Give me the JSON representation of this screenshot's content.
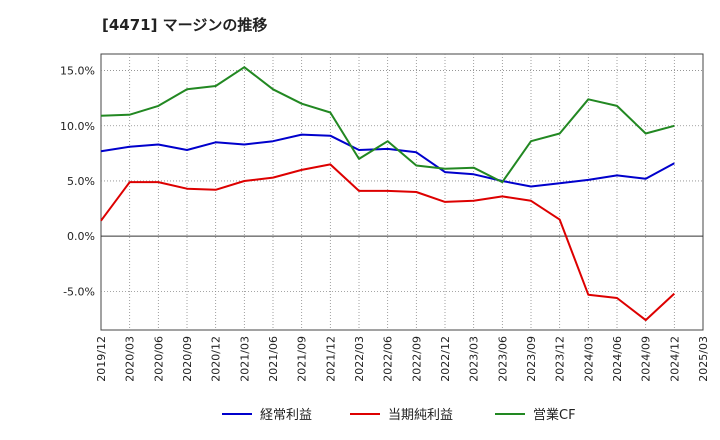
{
  "chart_data": {
    "type": "line",
    "title": "[4471]  マージンの推移",
    "x": [
      "2019/12",
      "2020/03",
      "2020/06",
      "2020/09",
      "2020/12",
      "2021/03",
      "2021/06",
      "2021/09",
      "2021/12",
      "2022/03",
      "2022/06",
      "2022/09",
      "2022/12",
      "2023/03",
      "2023/06",
      "2023/09",
      "2023/12",
      "2024/03",
      "2024/06",
      "2024/09",
      "2024/12",
      "2025/03"
    ],
    "yticks": [
      "15.0%",
      "10.0%",
      "5.0%",
      "0.0%",
      "-5.0%"
    ],
    "ytick_values": [
      15,
      10,
      5,
      0,
      -5
    ],
    "ylim": [
      -8.5,
      16.5
    ],
    "grid": true,
    "legend_position": "bottom",
    "series": [
      {
        "name": "経常利益",
        "color": "#0000cc",
        "values": [
          7.7,
          8.1,
          8.3,
          7.8,
          8.5,
          8.3,
          8.6,
          9.2,
          9.1,
          7.8,
          7.9,
          7.6,
          5.8,
          5.6,
          5.0,
          4.5,
          4.8,
          5.1,
          5.5,
          5.2,
          6.6,
          null
        ]
      },
      {
        "name": "当期純利益",
        "color": "#dd0000",
        "values": [
          1.4,
          4.9,
          4.9,
          4.3,
          4.2,
          5.0,
          5.3,
          6.0,
          6.5,
          4.1,
          4.1,
          4.0,
          3.1,
          3.2,
          3.6,
          3.2,
          1.5,
          -5.3,
          -5.6,
          -7.6,
          -5.2,
          null
        ]
      },
      {
        "name": "営業CF",
        "color": "#228822",
        "values": [
          10.9,
          11.0,
          11.8,
          13.3,
          13.6,
          15.3,
          13.3,
          12.0,
          11.2,
          7.0,
          8.6,
          6.4,
          6.1,
          6.2,
          4.9,
          8.6,
          9.3,
          12.4,
          11.8,
          9.3,
          10.0,
          null
        ]
      }
    ]
  }
}
